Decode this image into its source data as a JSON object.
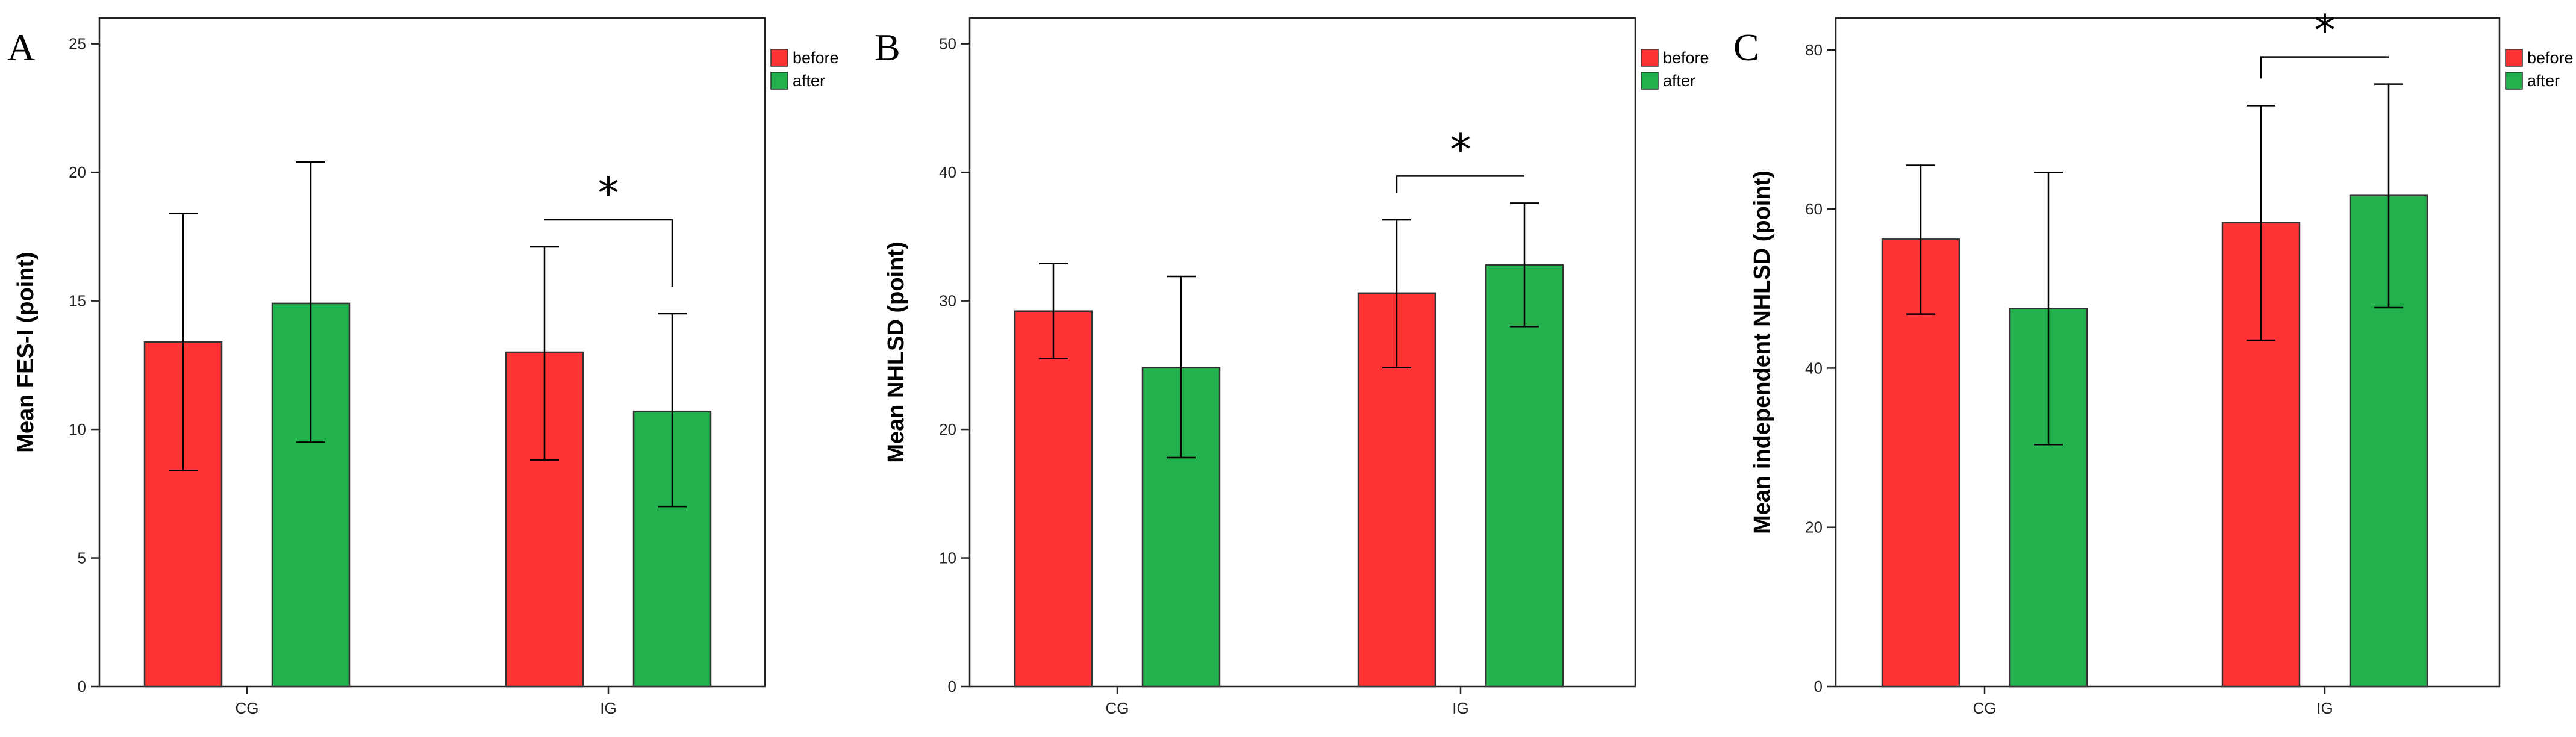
{
  "colors": {
    "before": "#ff3333",
    "after": "#22b14c"
  },
  "chart_data": [
    {
      "type": "bar",
      "panel": "A",
      "ylabel": "Mean FES-I (point)",
      "ylim": [
        0,
        26
      ],
      "yticks": [
        0,
        5,
        10,
        15,
        20,
        25
      ],
      "categories": [
        "CG",
        "IG"
      ],
      "series": [
        {
          "name": "before",
          "values": [
            13.4,
            13.0
          ],
          "err_low": [
            8.4,
            8.8
          ],
          "err_high": [
            18.4,
            17.1
          ]
        },
        {
          "name": "after",
          "values": [
            14.9,
            10.7
          ],
          "err_low": [
            9.5,
            7.0
          ],
          "err_high": [
            20.4,
            14.5
          ]
        }
      ],
      "significance": [
        {
          "category": "IG",
          "label": "*"
        }
      ],
      "legend": [
        "before",
        "after"
      ],
      "legend_position": "top-right"
    },
    {
      "type": "bar",
      "panel": "B",
      "ylabel": "Mean NHLSD (point)",
      "ylim": [
        0,
        52
      ],
      "yticks": [
        0,
        10,
        20,
        30,
        40,
        50
      ],
      "categories": [
        "CG",
        "IG"
      ],
      "series": [
        {
          "name": "before",
          "values": [
            29.2,
            30.6
          ],
          "err_low": [
            25.5,
            24.8
          ],
          "err_high": [
            32.9,
            36.3
          ]
        },
        {
          "name": "after",
          "values": [
            24.8,
            32.8
          ],
          "err_low": [
            17.8,
            28.0
          ],
          "err_high": [
            31.9,
            37.6
          ]
        }
      ],
      "significance": [
        {
          "category": "IG",
          "label": "*"
        }
      ],
      "legend": [
        "before",
        "after"
      ],
      "legend_position": "top-right"
    },
    {
      "type": "bar",
      "panel": "C",
      "ylabel": "Mean independent NHLSD (point)",
      "ylim": [
        0,
        84
      ],
      "yticks": [
        0,
        20,
        40,
        60,
        80
      ],
      "categories": [
        "CG",
        "IG"
      ],
      "series": [
        {
          "name": "before",
          "values": [
            56.2,
            58.3
          ],
          "err_low": [
            46.8,
            43.5
          ],
          "err_high": [
            65.5,
            73.0
          ]
        },
        {
          "name": "after",
          "values": [
            47.5,
            61.7
          ],
          "err_low": [
            30.4,
            47.6
          ],
          "err_high": [
            64.6,
            75.7
          ]
        }
      ],
      "significance": [
        {
          "category": "IG",
          "label": "*"
        }
      ],
      "legend": [
        "before",
        "after"
      ],
      "legend_position": "top-right"
    }
  ]
}
